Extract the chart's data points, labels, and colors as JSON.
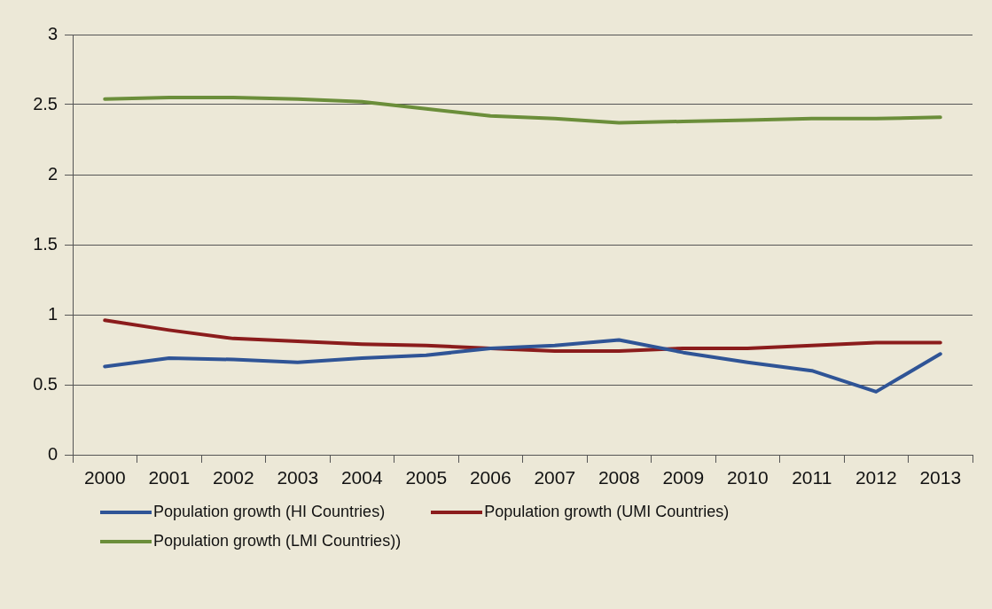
{
  "chart_data": {
    "type": "line",
    "categories": [
      "2000",
      "2001",
      "2002",
      "2003",
      "2004",
      "2005",
      "2006",
      "2007",
      "2008",
      "2009",
      "2010",
      "2011",
      "2012",
      "2013"
    ],
    "series": [
      {
        "name": "Population growth (HI Countries)",
        "color": "#2f5496",
        "values": [
          0.63,
          0.69,
          0.68,
          0.66,
          0.69,
          0.71,
          0.76,
          0.78,
          0.82,
          0.73,
          0.66,
          0.6,
          0.45,
          0.72
        ]
      },
      {
        "name": "Population growth (UMI Countries)",
        "color": "#8b1c1c",
        "values": [
          0.96,
          0.89,
          0.83,
          0.81,
          0.79,
          0.78,
          0.76,
          0.74,
          0.74,
          0.76,
          0.76,
          0.78,
          0.8,
          0.8
        ]
      },
      {
        "name": "Population growth (LMI Countries))",
        "color": "#6b8e3a",
        "values": [
          2.54,
          2.55,
          2.55,
          2.54,
          2.52,
          2.47,
          2.42,
          2.4,
          2.37,
          2.38,
          2.39,
          2.4,
          2.4,
          2.41
        ]
      }
    ],
    "ylim": [
      0,
      3
    ],
    "yticks": [
      0,
      0.5,
      1,
      1.5,
      2,
      2.5,
      3
    ],
    "grid": "y",
    "legend": "bottom"
  }
}
